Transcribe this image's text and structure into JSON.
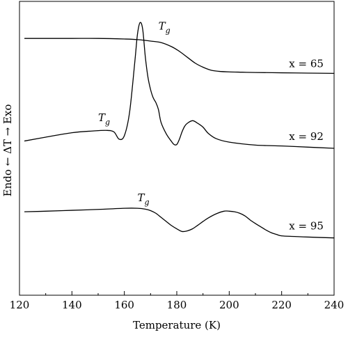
{
  "chart_data": {
    "type": "line",
    "xlabel": "Temperature (K)",
    "ylabel": "Endo ← ΔT → Exo",
    "xlim": [
      120,
      240
    ],
    "x_ticks": [
      120,
      140,
      160,
      180,
      200,
      220,
      240
    ],
    "ylim": [
      0,
      100
    ],
    "grid": false,
    "series": [
      {
        "name": "x = 65",
        "x": [
          122,
          130,
          140,
          150,
          160,
          165,
          170,
          174,
          178,
          181,
          184,
          187,
          190,
          193,
          196,
          200,
          205,
          210,
          220,
          230,
          240
        ],
        "y": [
          87.4,
          87.4,
          87.4,
          87.4,
          87.2,
          87.0,
          86.5,
          86.0,
          84.6,
          83.0,
          81.0,
          79.0,
          77.6,
          76.6,
          76.2,
          76.0,
          75.9,
          75.8,
          75.7,
          75.6,
          75.5
        ]
      },
      {
        "name": "x = 92",
        "x": [
          122,
          130,
          140,
          148,
          153,
          156,
          158,
          160,
          162,
          164,
          165,
          166,
          167,
          168,
          169,
          170,
          171,
          172,
          173,
          174,
          176,
          178,
          179,
          180,
          181,
          182,
          183,
          184,
          186,
          188,
          190,
          192,
          195,
          200,
          210,
          220,
          230,
          240
        ],
        "y": [
          52.5,
          53.8,
          55.3,
          55.9,
          56.1,
          55.6,
          53.1,
          54.3,
          62.3,
          79.5,
          88.8,
          92.8,
          90.5,
          81.1,
          74.2,
          70.0,
          67.2,
          65.6,
          63.2,
          58.8,
          54.9,
          52.3,
          51.3,
          51.3,
          53.1,
          55.6,
          57.5,
          58.5,
          59.4,
          58.5,
          57.2,
          55.1,
          53.3,
          52.1,
          51.1,
          50.8,
          50.4,
          50.0
        ]
      },
      {
        "name": "x = 95",
        "x": [
          122,
          130,
          140,
          150,
          160,
          165,
          168,
          170,
          172,
          174,
          176,
          178,
          180,
          182,
          184,
          186,
          188,
          190,
          192,
          195,
          198,
          200,
          202,
          204,
          206,
          208,
          210,
          212,
          214,
          216,
          218,
          220,
          225,
          230,
          240
        ],
        "y": [
          28.4,
          28.6,
          28.9,
          29.2,
          29.6,
          29.6,
          29.3,
          28.8,
          27.9,
          26.5,
          25.1,
          23.7,
          22.6,
          21.7,
          21.9,
          22.6,
          23.8,
          25.1,
          26.3,
          27.7,
          28.6,
          28.6,
          28.4,
          27.9,
          27.0,
          25.6,
          24.4,
          23.3,
          22.2,
          21.3,
          20.7,
          20.2,
          20.0,
          19.8,
          19.5
        ]
      }
    ],
    "annotations": [
      {
        "text": "T",
        "sub": "g",
        "x": 173,
        "y": 90.4
      },
      {
        "text": "T",
        "sub": "g",
        "x": 150,
        "y": 59.2
      },
      {
        "text": "T",
        "sub": "g",
        "x": 165,
        "y": 32.0
      },
      {
        "text": "x = 65",
        "x": 236,
        "y": 77.6
      },
      {
        "text": "x = 92",
        "x": 236,
        "y": 52.9
      },
      {
        "text": "x = 95",
        "x": 236,
        "y": 22.4
      }
    ]
  }
}
